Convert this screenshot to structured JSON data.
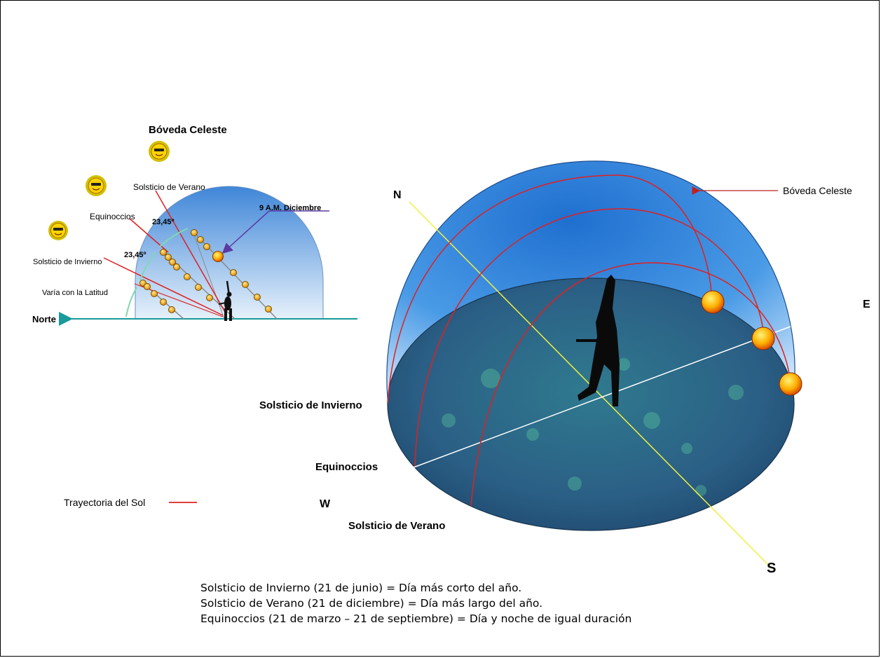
{
  "small_diagram": {
    "title": "Bóveda Celeste",
    "label_summer": "Solsticio de Verano",
    "label_equinox": "Equinoccios",
    "label_winter": "Solsticio de Invierno",
    "label_latitude": "Varía con la Latitud",
    "angle_1": "23,45º",
    "angle_2": "23,45º",
    "label_9am": "9 A.M. Diciembre",
    "label_north": "Norte"
  },
  "large_diagram": {
    "label_boveda": "Bóveda Celeste",
    "dir_n": "N",
    "dir_e": "E",
    "dir_w": "W",
    "dir_s": "S",
    "label_winter": "Solsticio de  Invierno",
    "label_equinox": "Equinoccios",
    "label_summer": "Solsticio de Verano"
  },
  "legend": {
    "label": "Trayectoria del Sol",
    "color": "#e02020"
  },
  "caption": {
    "line1": "Solsticio de Invierno (21 de junio) = Día más corto del año.",
    "line2": "Solsticio de Verano (21 de diciembre) = Día más largo del año.",
    "line3": "Equinoccios (21 de marzo – 21 de septiembre) = Día y noche de igual duración"
  },
  "colors": {
    "sky": "#3a8fe0",
    "ground": "#2f6f8f",
    "sun": "#ffb000",
    "path": "#e02020",
    "ns_axis": "#f0f040",
    "horizon_arrow": "#1a9a9a"
  }
}
